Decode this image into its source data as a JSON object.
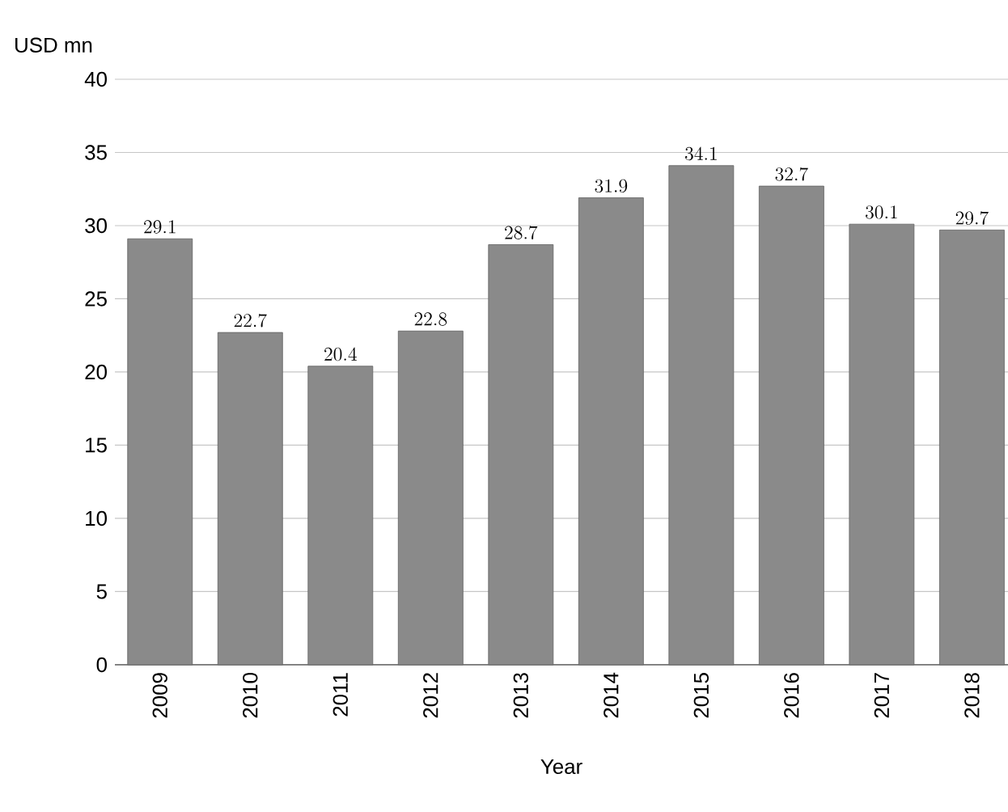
{
  "chart_data": {
    "type": "bar",
    "ylabel": "USD mn",
    "xlabel": "Year",
    "categories": [
      "2009",
      "2010",
      "2011",
      "2012",
      "2013",
      "2014",
      "2015",
      "2016",
      "2017",
      "2018"
    ],
    "values": [
      29.1,
      22.7,
      20.4,
      22.8,
      28.7,
      31.9,
      34.1,
      32.7,
      30.1,
      29.7
    ],
    "color": "#8a8a8a",
    "ylim": [
      0,
      40
    ],
    "yticks": [
      0,
      5,
      10,
      15,
      20,
      25,
      30,
      35,
      40
    ],
    "grid": "y",
    "data_labels": true
  }
}
